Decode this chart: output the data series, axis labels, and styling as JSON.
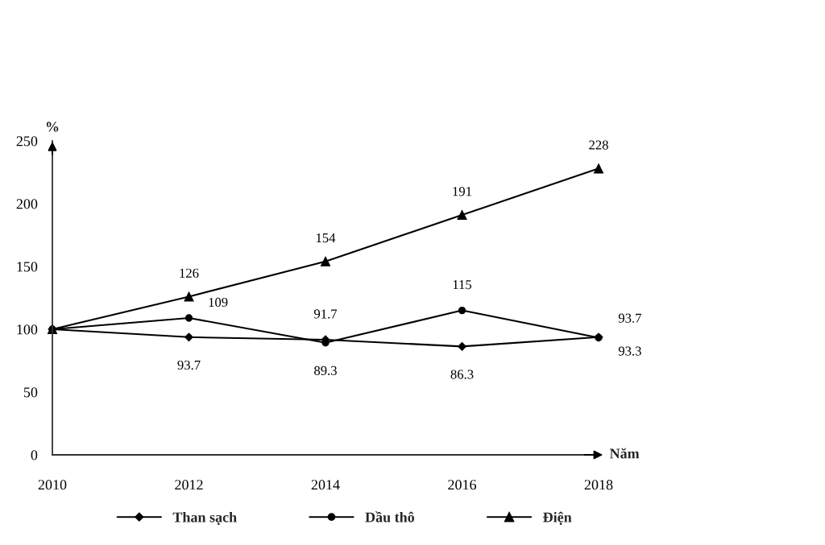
{
  "chart_data": {
    "type": "line",
    "xlabel": "Năm",
    "ylabel": "%",
    "x": [
      2010,
      2012,
      2014,
      2016,
      2018
    ],
    "xlim": [
      2010,
      2018
    ],
    "xticks": [
      2010,
      2012,
      2014,
      2016,
      2018
    ],
    "ylim": [
      0,
      250
    ],
    "yticks": [
      0,
      50,
      100,
      150,
      200,
      250
    ],
    "grid": false,
    "legend": "bottom",
    "line_style": "solid",
    "series": [
      {
        "name": "Than sạch",
        "color": "#000000",
        "marker": "diamond",
        "values": [
          100,
          93.7,
          91.7,
          86.3,
          93.7
        ],
        "value_labels": [
          null,
          "93.7",
          "91.7",
          "86.3",
          "93.7"
        ]
      },
      {
        "name": "Dầu thô",
        "color": "#000000",
        "marker": "circle",
        "values": [
          100,
          109,
          89.3,
          115,
          93.3
        ],
        "value_labels": [
          null,
          "109",
          "89.3",
          "115",
          "93.3"
        ]
      },
      {
        "name": "Điện",
        "color": "#000000",
        "marker": "triangle",
        "values": [
          100,
          126,
          154,
          191,
          228
        ],
        "value_labels": [
          null,
          "126",
          "154",
          "191",
          "228"
        ]
      }
    ]
  }
}
